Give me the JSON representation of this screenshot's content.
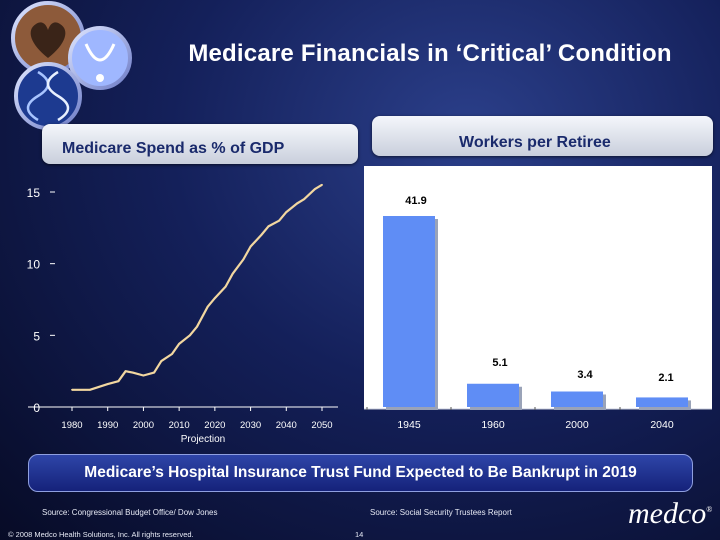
{
  "title": "Medicare Financials in ‘Critical’ Condition",
  "panel_left_title": "Medicare Spend as % of GDP",
  "panel_right_title": "Workers per Retiree",
  "banner": "Medicare’s Hospital Insurance Trust Fund Expected to Be Bankrupt in 2019",
  "footer": {
    "source_left": "Source: Congressional Budget Office/ Dow Jones",
    "source_right": "Source: Social Security Trustees Report",
    "copyright": "© 2008 Medco Health Solutions, Inc. All rights reserved.",
    "page_number": "14",
    "brand": "medco"
  },
  "colors": {
    "line": "#f2d7a0",
    "bar": "#5f8df5",
    "panel": "#ffffff"
  },
  "icons": [
    "hands-heart-icon",
    "stethoscope-icon",
    "dna-helix-icon"
  ],
  "chart_data": [
    {
      "type": "line",
      "title": "Medicare Spend as % of GDP",
      "x": [
        1980,
        1985,
        1990,
        1993,
        1995,
        1997,
        2000,
        2003,
        2005,
        2008,
        2010,
        2013,
        2015,
        2018,
        2020,
        2023,
        2025,
        2028,
        2030,
        2033,
        2035,
        2038,
        2040,
        2043,
        2045,
        2048,
        2050
      ],
      "values": [
        1.2,
        1.2,
        1.6,
        1.8,
        2.5,
        2.4,
        2.2,
        2.4,
        3.2,
        3.7,
        4.4,
        5.0,
        5.6,
        7.0,
        7.6,
        8.4,
        9.3,
        10.3,
        11.2,
        12.0,
        12.6,
        13.0,
        13.6,
        14.2,
        14.5,
        15.2,
        15.5
      ],
      "xticks": [
        "1980",
        "1990",
        "2000",
        "2010",
        "2020",
        "2030",
        "2040",
        "2050"
      ],
      "yticks": [
        "0",
        "5",
        "10",
        "15"
      ],
      "ylim": [
        0,
        15
      ],
      "xlim": [
        1980,
        2050
      ],
      "annotation": "Projection",
      "grid": false
    },
    {
      "type": "bar",
      "title": "Workers per Retiree",
      "categories": [
        "1945",
        "1960",
        "2000",
        "2040"
      ],
      "values": [
        41.9,
        5.1,
        3.4,
        2.1
      ],
      "data_labels": [
        "41.9",
        "5.1",
        "3.4",
        "2.1"
      ],
      "ylim": [
        0,
        45
      ],
      "grid": false
    }
  ]
}
